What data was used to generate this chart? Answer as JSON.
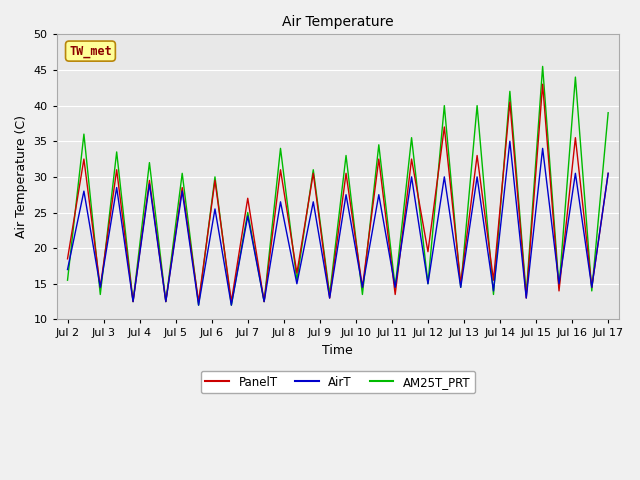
{
  "title": "Air Temperature",
  "xlabel": "Time",
  "ylabel": "Air Temperature (C)",
  "ylim": [
    10,
    50
  ],
  "xtick_labels": [
    "Jul 2",
    "Jul 3",
    "Jul 4",
    "Jul 5",
    "Jul 6",
    "Jul 7",
    "Jul 8",
    "Jul 9",
    "Jul 10",
    "Jul 11",
    "Jul 12",
    "Jul 13",
    "Jul 14",
    "Jul 15",
    "Jul 16",
    "Jul 17"
  ],
  "xtick_positions": [
    0,
    1,
    2,
    3,
    4,
    5,
    6,
    7,
    8,
    9,
    10,
    11,
    12,
    13,
    14,
    15
  ],
  "annotation_text": "TW_met",
  "annotation_color": "#8B0000",
  "annotation_bg": "#FFFF99",
  "annotation_border": "#B8860B",
  "plot_bg_color": "#E8E8E8",
  "fig_bg_color": "#F0F0F0",
  "grid_color": "#FFFFFF",
  "panel_color_red": "#CC0000",
  "airt_color_blue": "#0000CC",
  "am25t_color_green": "#00BB00",
  "legend_labels": [
    "PanelT",
    "AirT",
    "AM25T_PRT"
  ],
  "PanelT": [
    18.5,
    32.5,
    14.5,
    31.0,
    12.5,
    29.5,
    12.5,
    28.5,
    12.5,
    29.5,
    12.5,
    27.0,
    12.5,
    31.0,
    16.5,
    30.5,
    13.0,
    30.5,
    14.5,
    32.5,
    13.5,
    32.5,
    19.5,
    37.0,
    15.0,
    33.0,
    15.5,
    40.5,
    13.0,
    43.0,
    14.0,
    35.5,
    14.5,
    30.5
  ],
  "AirT": [
    17.0,
    28.0,
    14.5,
    28.5,
    12.5,
    29.0,
    12.5,
    28.0,
    12.0,
    25.5,
    12.0,
    24.5,
    12.5,
    26.5,
    15.0,
    26.5,
    13.0,
    27.5,
    14.5,
    27.5,
    14.5,
    30.0,
    15.0,
    30.0,
    14.5,
    30.0,
    14.0,
    35.0,
    13.0,
    34.0,
    15.0,
    30.5,
    14.5,
    30.5
  ],
  "AM25T_PRT": [
    15.5,
    36.0,
    13.5,
    33.5,
    12.5,
    32.0,
    12.5,
    30.5,
    12.0,
    30.0,
    12.0,
    25.0,
    12.5,
    34.0,
    15.5,
    31.0,
    13.5,
    33.0,
    13.5,
    34.5,
    14.5,
    35.5,
    15.0,
    40.0,
    14.5,
    40.0,
    13.5,
    42.0,
    13.5,
    45.5,
    14.5,
    44.0,
    14.0,
    39.0
  ]
}
